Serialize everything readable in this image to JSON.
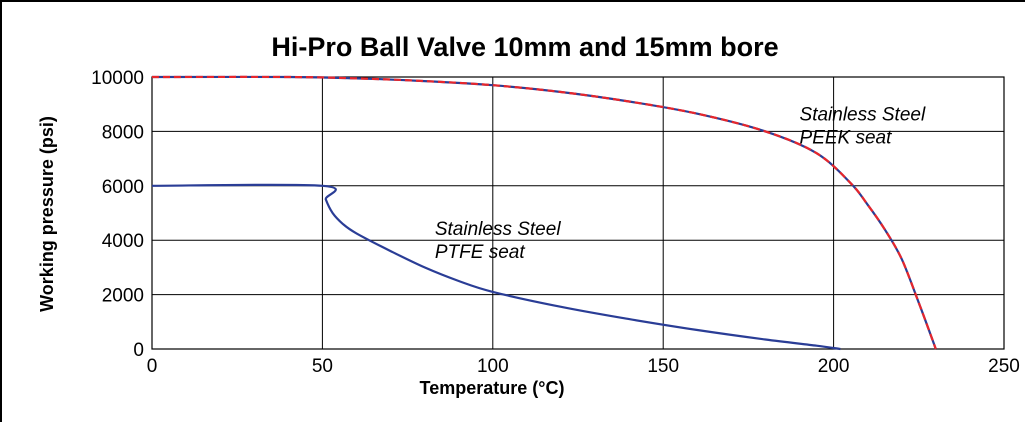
{
  "chart_data": {
    "type": "line",
    "title": "Hi-Pro Ball Valve 10mm and 15mm bore",
    "xlabel": "Temperature (°C)",
    "ylabel": "Working pressure (psi)",
    "xlim": [
      0,
      250
    ],
    "ylim": [
      0,
      10000
    ],
    "xticks": [
      0,
      50,
      100,
      150,
      200,
      250
    ],
    "yticks": [
      0,
      2000,
      4000,
      6000,
      8000,
      10000
    ],
    "grid": true,
    "series": [
      {
        "color": "#e8262b",
        "dashed": true,
        "x": [
          0,
          40,
          60,
          80,
          100,
          120,
          140,
          160,
          180,
          195,
          205,
          210,
          215,
          220,
          225,
          230
        ],
        "y": [
          10000,
          10000,
          9950,
          9850,
          9700,
          9450,
          9100,
          8650,
          8000,
          7200,
          6100,
          5300,
          4400,
          3300,
          1700,
          0
        ]
      },
      {
        "color": "#2a3d96",
        "dashed": false,
        "x": [
          0,
          50,
          51,
          53,
          56,
          60,
          70,
          80,
          90,
          100,
          120,
          140,
          160,
          180,
          195,
          202
        ],
        "y": [
          6000,
          6000,
          5500,
          5000,
          4600,
          4250,
          3600,
          3000,
          2500,
          2100,
          1550,
          1100,
          700,
          350,
          120,
          0
        ]
      }
    ],
    "annotations": [
      {
        "line1": "Stainless Steel",
        "line2": "PEEK seat",
        "x": 190,
        "y": 8400
      },
      {
        "line1": "Stainless Steel",
        "line2": "PTFE seat",
        "x": 83,
        "y": 4200
      }
    ]
  }
}
